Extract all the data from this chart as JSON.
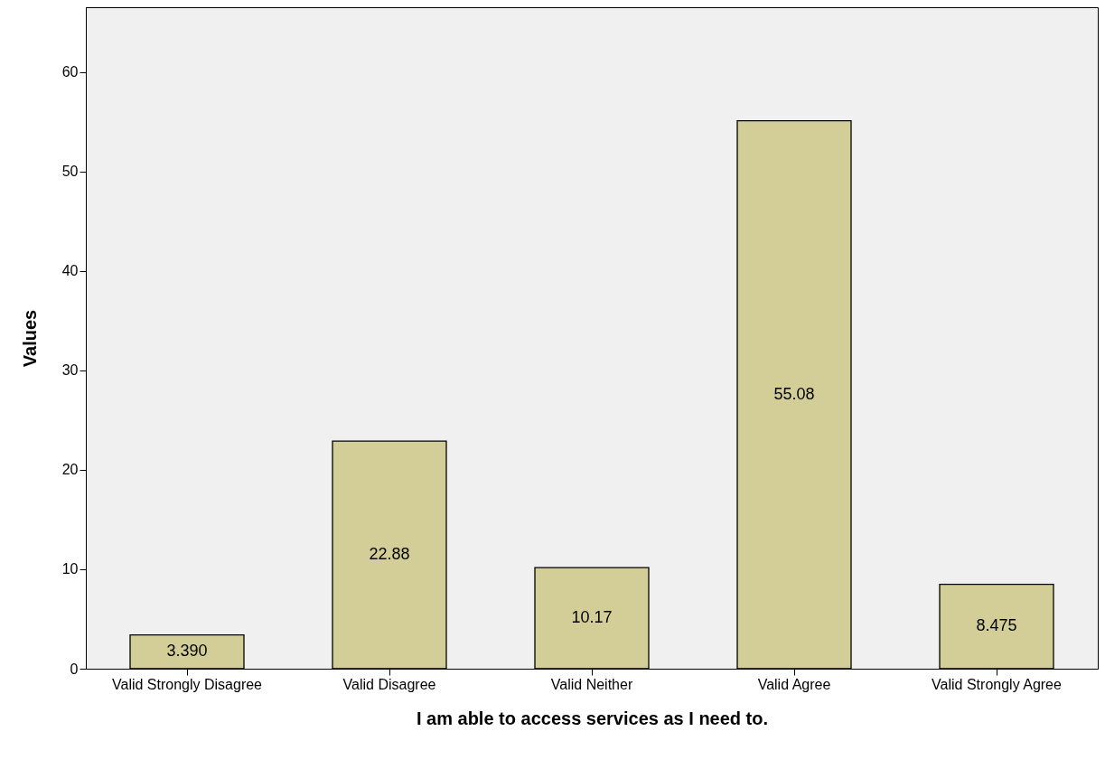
{
  "chart_data": {
    "type": "bar",
    "xlabel": "I am able to access services as I need to.",
    "ylabel": "Values",
    "categories": [
      "Valid Strongly Disagree",
      "Valid Disagree",
      "Valid Neither",
      "Valid Agree",
      "Valid Strongly Agree"
    ],
    "values": [
      3.39,
      22.88,
      10.17,
      55.08,
      8.475
    ],
    "value_labels": [
      "3.390",
      "22.88",
      "10.17",
      "55.08",
      "8.475"
    ],
    "color": "#d3ce97",
    "ylim": [
      0,
      66.5
    ],
    "yticks": [
      0,
      10,
      20,
      30,
      40,
      50,
      60
    ],
    "grid": false
  }
}
